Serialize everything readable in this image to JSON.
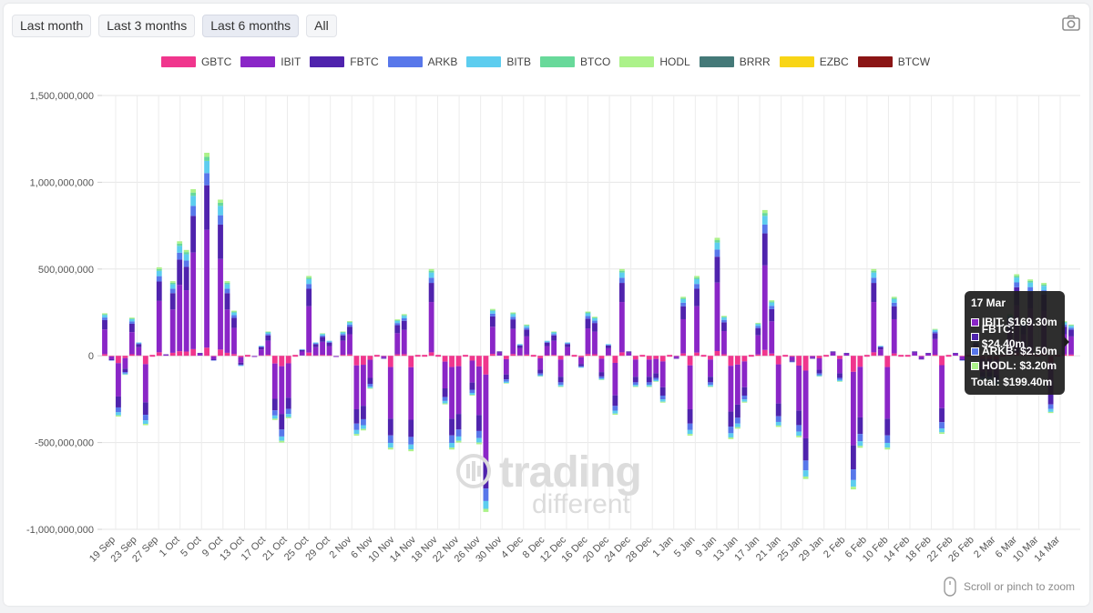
{
  "range_buttons": [
    "Last month",
    "Last 3 months",
    "Last 6 months",
    "All"
  ],
  "active_range": "Last 6 months",
  "icons": {
    "camera": "camera-icon",
    "mouse": "mouse-icon"
  },
  "chart_data": {
    "type": "bar",
    "stacked": true,
    "legend_position": "top",
    "grid": true,
    "ylim": [
      -1000000000,
      1500000000
    ],
    "yticks": [
      -1000000000,
      -500000000,
      0,
      500000000,
      1000000000,
      1500000000
    ],
    "ytick_labels": [
      "-1,000,000,000",
      "-500,000,000",
      "0",
      "500,000,000",
      "1,000,000,000",
      "1,500,000,000"
    ],
    "xtick_labels": [
      "19 Sep",
      "23 Sep",
      "27 Sep",
      "1 Oct",
      "5 Oct",
      "9 Oct",
      "13 Oct",
      "17 Oct",
      "21 Oct",
      "25 Oct",
      "29 Oct",
      "2 Nov",
      "6 Nov",
      "10 Nov",
      "14 Nov",
      "18 Nov",
      "22 Nov",
      "26 Nov",
      "30 Nov",
      "4 Dec",
      "8 Dec",
      "12 Dec",
      "16 Dec",
      "20 Dec",
      "24 Dec",
      "28 Dec",
      "1 Jan",
      "5 Jan",
      "9 Jan",
      "13 Jan",
      "17 Jan",
      "21 Jan",
      "25 Jan",
      "29 Jan",
      "2 Feb",
      "6 Feb",
      "10 Feb",
      "14 Feb",
      "18 Feb",
      "22 Feb",
      "26 Feb",
      "2 Mar",
      "6 Mar",
      "10 Mar",
      "14 Mar"
    ],
    "series": [
      {
        "name": "GBTC",
        "color": "#f0368d"
      },
      {
        "name": "IBIT",
        "color": "#8a26c7"
      },
      {
        "name": "FBTC",
        "color": "#4f23ad"
      },
      {
        "name": "ARKB",
        "color": "#5877ea"
      },
      {
        "name": "BITB",
        "color": "#5dcdef"
      },
      {
        "name": "BTCO",
        "color": "#68d99a"
      },
      {
        "name": "HODL",
        "color": "#acf28a"
      },
      {
        "name": "BRRR",
        "color": "#447978"
      },
      {
        "name": "EZBC",
        "color": "#f8d516"
      },
      {
        "name": "BTCW",
        "color": "#8b1515"
      }
    ],
    "net_flows_millions": [
      245,
      -30,
      -350,
      -110,
      220,
      80,
      -400,
      0,
      510,
      10,
      430,
      660,
      610,
      960,
      20,
      1170,
      -30,
      900,
      430,
      260,
      -60,
      0,
      -10,
      60,
      140,
      -370,
      -500,
      -360,
      0,
      40,
      460,
      80,
      130,
      90,
      -10,
      140,
      200,
      -460,
      -430,
      -190,
      0,
      -20,
      -540,
      210,
      240,
      -550,
      0,
      0,
      500,
      0,
      -280,
      -540,
      -500,
      0,
      -230,
      -510,
      -900,
      270,
      30,
      -160,
      250,
      70,
      180,
      0,
      -120,
      90,
      140,
      -180,
      80,
      0,
      -70,
      255,
      225,
      -140,
      70,
      -340,
      500,
      30,
      -180,
      0,
      -180,
      -150,
      -270,
      0,
      -20,
      340,
      -460,
      460,
      0,
      -180,
      680,
      230,
      -480,
      -420,
      -270,
      0,
      190,
      840,
      320,
      -410,
      0,
      -40,
      -470,
      -710,
      -20,
      -120,
      0,
      30,
      -150,
      20,
      -770,
      -530,
      0,
      500,
      60,
      -540,
      340,
      0,
      0,
      30,
      -25,
      20,
      155,
      -450,
      0,
      20,
      -30,
      0,
      85,
      -140,
      -140,
      -165,
      0,
      240,
      470,
      200,
      440,
      0,
      420,
      -330,
      0,
      200,
      180
    ]
  },
  "tooltip": {
    "title": "17 Mar",
    "rows": [
      {
        "label": "IBIT: $169.30m",
        "color": "#8a26c7"
      },
      {
        "label": "FBTC: $24.40m",
        "color": "#4f23ad"
      },
      {
        "label": "ARKB: $2.50m",
        "color": "#5877ea"
      },
      {
        "label": "HODL: $3.20m",
        "color": "#acf28a"
      }
    ],
    "total": "Total: $199.40m"
  },
  "watermark": {
    "line1": "trading",
    "line2": "different"
  },
  "zoom_hint": "Scroll or pinch to zoom"
}
